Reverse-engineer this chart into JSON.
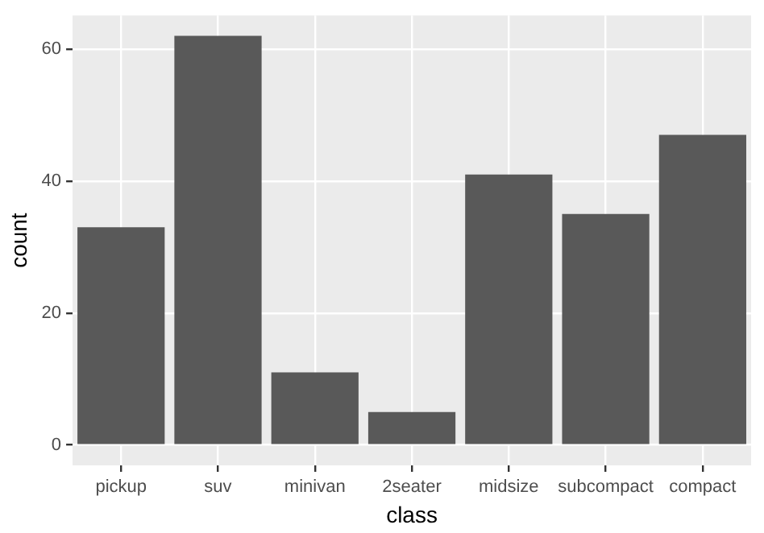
{
  "chart_data": {
    "type": "bar",
    "xlabel": "class",
    "ylabel": "count",
    "categories": [
      "pickup",
      "suv",
      "minivan",
      "2seater",
      "midsize",
      "subcompact",
      "compact"
    ],
    "values": [
      33,
      62,
      11,
      5,
      41,
      35,
      47
    ],
    "color": "#595959",
    "ylim": [
      -3.1,
      65.1
    ],
    "yticks": [
      0,
      20,
      40,
      60
    ],
    "grid": true
  }
}
